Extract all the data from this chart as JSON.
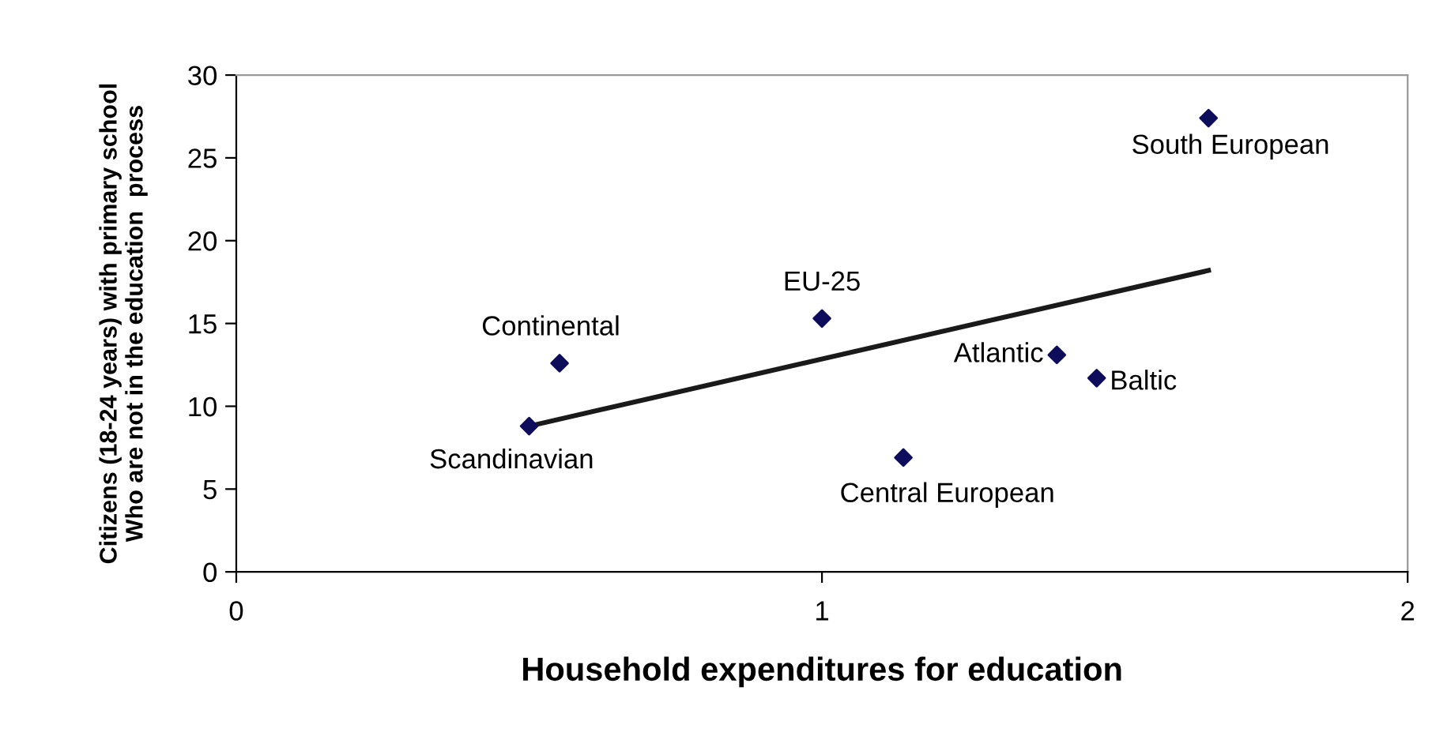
{
  "chart_data": {
    "type": "scatter",
    "xlabel": "Household expenditures for education",
    "ylabel": "Citizens (18-24 years) with primary school\nWho are not in the education  process",
    "xlim": [
      0,
      2
    ],
    "xticks": [
      0,
      1,
      2
    ],
    "ylim": [
      0,
      30
    ],
    "yticks": [
      0,
      5,
      10,
      15,
      20,
      25,
      30
    ],
    "grid": false,
    "legend": false,
    "series": [
      {
        "marker": "diamond",
        "color": "#0d0d5c",
        "x": [
          0.5,
          0.552,
          1.0,
          1.139,
          1.401,
          1.469,
          1.66
        ],
        "values": [
          8.8,
          12.6,
          15.3,
          6.9,
          13.1,
          11.7,
          27.4
        ]
      },
      {
        "type": "line",
        "marker": "none",
        "line_style": "solid",
        "color": "#1a1a1a",
        "x": [
          0.5,
          1.66
        ],
        "values": [
          8.8,
          18.2
        ]
      }
    ],
    "annotations": [
      {
        "text": "Scandinavian",
        "x": 0.5,
        "y": 8.8
      },
      {
        "text": "Continental",
        "x": 0.552,
        "y": 12.6
      },
      {
        "text": "EU-25",
        "x": 1.0,
        "y": 15.3
      },
      {
        "text": "Central European",
        "x": 1.139,
        "y": 6.9
      },
      {
        "text": "Atlantic",
        "x": 1.401,
        "y": 13.1
      },
      {
        "text": "Baltic",
        "x": 1.469,
        "y": 11.7
      },
      {
        "text": "South European",
        "x": 1.66,
        "y": 27.4
      }
    ]
  }
}
